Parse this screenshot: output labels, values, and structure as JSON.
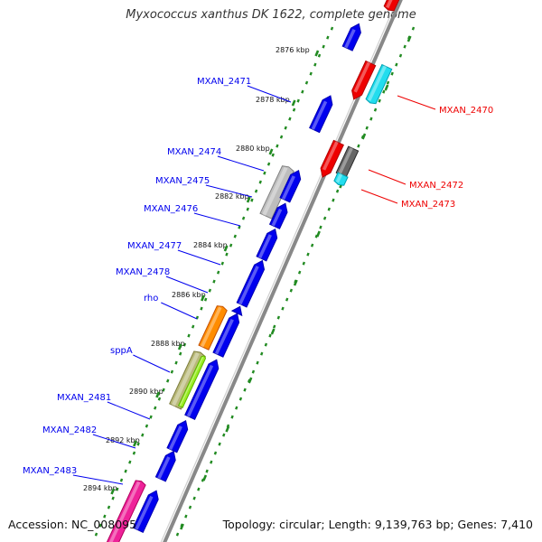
{
  "title": "Myxococcus xanthus DK 1622, complete genome",
  "footer": {
    "accession": "Accession: NC_008095",
    "topology": "Topology: circular; Length: 9,139,763 bp; Genes: 7,410"
  },
  "colors": {
    "forward_gene": "#0000ee",
    "reverse_gene": "#ee0000",
    "tick_mark": "#228b22",
    "backbone": "#888888",
    "cyan_gene": "#22ddee",
    "gray_gene": "#bdbdbd",
    "dark_gray_gene": "#666666",
    "orange_gene": "#ff8c00",
    "olive_gene": "#b8b878",
    "lime_gene": "#99ee22",
    "pink_gene": "#ee2299"
  },
  "ticks": [
    {
      "label": "2876 kbp"
    },
    {
      "label": "2878 kbp"
    },
    {
      "label": "2880 kbp"
    },
    {
      "label": "2882 kbp"
    },
    {
      "label": "2884 kbp"
    },
    {
      "label": "2886 kbp"
    },
    {
      "label": "2888 kbp"
    },
    {
      "label": "2890 kbp"
    },
    {
      "label": "2892 kbp"
    },
    {
      "label": "2894 kbp"
    }
  ],
  "forward_labels": [
    {
      "name": "MXAN_2471"
    },
    {
      "name": "MXAN_2474"
    },
    {
      "name": "MXAN_2475"
    },
    {
      "name": "MXAN_2476"
    },
    {
      "name": "MXAN_2477"
    },
    {
      "name": "MXAN_2478"
    },
    {
      "name": "rho"
    },
    {
      "name": "sppA"
    },
    {
      "name": "MXAN_2481"
    },
    {
      "name": "MXAN_2482"
    },
    {
      "name": "MXAN_2483"
    }
  ],
  "reverse_labels": [
    {
      "name": "MXAN_2470"
    },
    {
      "name": "MXAN_2472"
    },
    {
      "name": "MXAN_2473"
    }
  ]
}
